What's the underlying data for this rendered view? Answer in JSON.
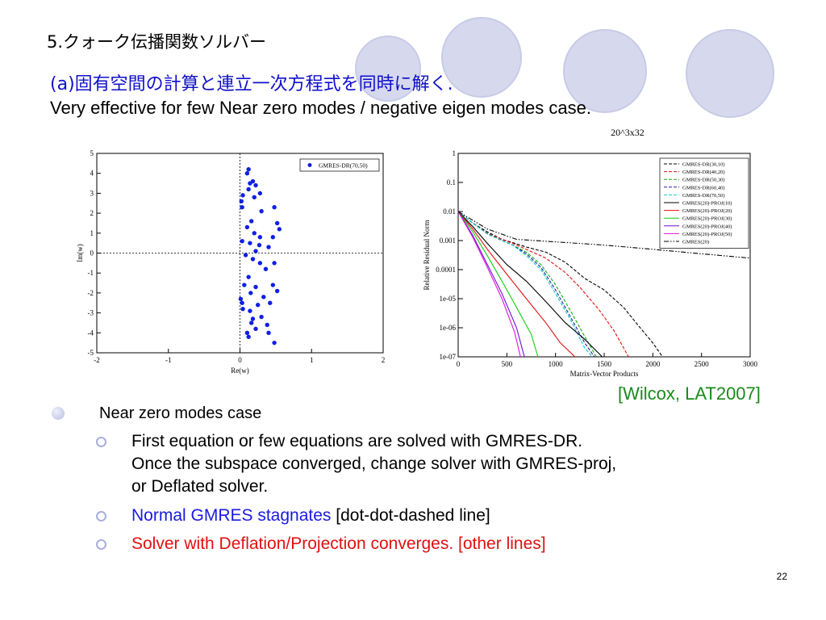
{
  "slide": {
    "title": "5.クォーク伝播関数ソルバー",
    "subtitle": "(a)固有空間の計算と連立一次方程式を同時に解く.",
    "subtitle2": "Very effective for few Near zero modes / negative eigen modes case.",
    "citation": "[Wilcox, LAT2007]",
    "page_number": "22",
    "bullet": "Near zero modes case",
    "sub_bullets": [
      {
        "line1": "First equation or few equations are solved with GMRES-DR.",
        "line2": "Once the subspace converged, change solver with GMRES-proj,",
        "line3": "or Deflated solver."
      },
      {
        "blue": "Normal GMRES stagnates",
        "black": " [dot-dot-dashed line]"
      },
      {
        "red": "Solver with Deflation/Projection converges. [other lines]"
      }
    ],
    "accent_colors": {
      "title_blue": "#1010c8",
      "citation_green": "#1a8a1a",
      "stagnate_blue": "#1a1ae0",
      "converge_red": "#e01010",
      "circle_fill": "#d6d9ee"
    }
  },
  "chart_data": [
    {
      "type": "scatter",
      "xlabel": "Re(w)",
      "ylabel": "Im(w)",
      "xlim": [
        -2,
        2
      ],
      "ylim": [
        -5,
        5
      ],
      "xticks": [
        "-2",
        "-1",
        "0",
        "1",
        "2"
      ],
      "yticks": [
        "-5",
        "-4",
        "-3",
        "-2",
        "-1",
        "0",
        "1",
        "2",
        "3",
        "4",
        "5"
      ],
      "legend": "GMRES-DR(70,50)",
      "legend_position": "top-right",
      "points": [
        [
          0.12,
          4.2
        ],
        [
          0.1,
          4.0
        ],
        [
          0.18,
          3.6
        ],
        [
          0.14,
          3.5
        ],
        [
          0.22,
          3.4
        ],
        [
          0.12,
          3.2
        ],
        [
          0.28,
          3.0
        ],
        [
          0.04,
          2.9
        ],
        [
          0.2,
          2.8
        ],
        [
          0.02,
          2.6
        ],
        [
          0.48,
          2.3
        ],
        [
          0.03,
          2.3
        ],
        [
          0.3,
          2.1
        ],
        [
          0.52,
          1.5
        ],
        [
          0.16,
          1.6
        ],
        [
          0.1,
          1.3
        ],
        [
          0.55,
          1.2
        ],
        [
          0.2,
          1.0
        ],
        [
          0.28,
          0.8
        ],
        [
          0.46,
          0.8
        ],
        [
          0.03,
          0.6
        ],
        [
          0.14,
          0.5
        ],
        [
          0.27,
          0.4
        ],
        [
          0.4,
          0.3
        ],
        [
          0.22,
          0.1
        ],
        [
          0.08,
          -0.1
        ],
        [
          0.18,
          -0.3
        ],
        [
          0.28,
          -0.5
        ],
        [
          0.48,
          -0.5
        ],
        [
          0.36,
          -0.8
        ],
        [
          0.12,
          -1.2
        ],
        [
          0.06,
          -1.6
        ],
        [
          0.22,
          -1.7
        ],
        [
          0.46,
          -1.6
        ],
        [
          0.52,
          -1.9
        ],
        [
          0.33,
          -2.2
        ],
        [
          0.15,
          -2.0
        ],
        [
          0.01,
          -2.3
        ],
        [
          0.25,
          -2.6
        ],
        [
          0.03,
          -2.5
        ],
        [
          0.42,
          -2.5
        ],
        [
          0.14,
          -2.9
        ],
        [
          0.04,
          -2.8
        ],
        [
          0.18,
          -3.3
        ],
        [
          0.16,
          -3.5
        ],
        [
          0.3,
          -3.2
        ],
        [
          0.38,
          -3.6
        ],
        [
          0.1,
          -4.0
        ],
        [
          0.22,
          -3.8
        ],
        [
          0.4,
          -4.0
        ],
        [
          0.12,
          -4.2
        ],
        [
          0.48,
          -4.5
        ]
      ]
    },
    {
      "type": "line",
      "title": "20^3x32",
      "xlabel": "Matrix-Vector Products",
      "ylabel": "Relative Residual Norm",
      "xlim": [
        0,
        3000
      ],
      "ylim": [
        1e-07,
        1
      ],
      "yscale": "log",
      "xticks": [
        "0",
        "500",
        "1000",
        "1500",
        "2000",
        "2500",
        "3000"
      ],
      "yticks": [
        "1e-07",
        "1e-06",
        "1e-05",
        "0.0001",
        "0.001",
        "0.01",
        "0.1",
        "1"
      ],
      "legend_position": "top-right",
      "series": [
        {
          "name": "GMRES-DR(30,10)",
          "color": "#000000",
          "dash": "dashed",
          "points": [
            [
              0,
              0.01
            ],
            [
              150,
              0.004
            ],
            [
              300,
              0.002
            ],
            [
              450,
              0.0011
            ],
            [
              560,
              0.00085
            ],
            [
              700,
              0.0006
            ],
            [
              900,
              0.0004
            ],
            [
              1100,
              0.00018
            ],
            [
              1300,
              5e-05
            ],
            [
              1500,
              2e-05
            ],
            [
              1700,
              5e-06
            ],
            [
              1850,
              1.2e-06
            ],
            [
              2000,
              3e-07
            ],
            [
              2100,
              1e-07
            ]
          ]
        },
        {
          "name": "GMRES-DR(40,20)",
          "color": "#e01010",
          "dash": "dashed",
          "points": [
            [
              0,
              0.01
            ],
            [
              150,
              0.004
            ],
            [
              300,
              0.0018
            ],
            [
              450,
              0.0011
            ],
            [
              560,
              0.0008
            ],
            [
              700,
              0.0005
            ],
            [
              900,
              0.00025
            ],
            [
              1100,
              8e-05
            ],
            [
              1250,
              2.5e-05
            ],
            [
              1450,
              4e-06
            ],
            [
              1600,
              8e-07
            ],
            [
              1750,
              1e-07
            ]
          ]
        },
        {
          "name": "GMRES-DR(50,30)",
          "color": "#10b010",
          "dash": "dashed",
          "points": [
            [
              0,
              0.01
            ],
            [
              150,
              0.004
            ],
            [
              300,
              0.0017
            ],
            [
              450,
              0.001
            ],
            [
              560,
              0.0007
            ],
            [
              700,
              0.0004
            ],
            [
              850,
              0.00015
            ],
            [
              1000,
              3e-05
            ],
            [
              1150,
              4e-06
            ],
            [
              1300,
              5e-07
            ],
            [
              1420,
              1e-07
            ]
          ]
        },
        {
          "name": "GMRES-DR(60,40)",
          "color": "#2020a0",
          "dash": "dashed",
          "points": [
            [
              0,
              0.01
            ],
            [
              150,
              0.004
            ],
            [
              300,
              0.0017
            ],
            [
              450,
              0.001
            ],
            [
              560,
              0.0007
            ],
            [
              700,
              0.00035
            ],
            [
              850,
              0.00012
            ],
            [
              1000,
              2e-05
            ],
            [
              1150,
              2.5e-06
            ],
            [
              1300,
              3e-07
            ],
            [
              1400,
              1e-07
            ]
          ]
        },
        {
          "name": "GMRES-DR(70,50)",
          "color": "#10c8c8",
          "dash": "dashed",
          "points": [
            [
              0,
              0.01
            ],
            [
              150,
              0.004
            ],
            [
              300,
              0.0017
            ],
            [
              450,
              0.001
            ],
            [
              560,
              0.0007
            ],
            [
              700,
              0.0003
            ],
            [
              850,
              0.0001
            ],
            [
              1000,
              1.5e-05
            ],
            [
              1150,
              2e-06
            ],
            [
              1300,
              2e-07
            ],
            [
              1380,
              1e-07
            ]
          ]
        },
        {
          "name": "GMRES(20)-PROJ(10)",
          "color": "#000000",
          "dash": "solid",
          "points": [
            [
              0,
              0.01
            ],
            [
              150,
              0.003
            ],
            [
              300,
              0.0008
            ],
            [
              500,
              0.00015
            ],
            [
              700,
              4e-05
            ],
            [
              900,
              8e-06
            ],
            [
              1100,
              1.5e-06
            ],
            [
              1300,
              4e-07
            ],
            [
              1480,
              1e-07
            ]
          ]
        },
        {
          "name": "GMRES(20)-PROJ(20)",
          "color": "#e01010",
          "dash": "solid",
          "points": [
            [
              0,
              0.01
            ],
            [
              150,
              0.0025
            ],
            [
              300,
              0.0005
            ],
            [
              500,
              7e-05
            ],
            [
              700,
              1e-05
            ],
            [
              900,
              1.5e-06
            ],
            [
              1050,
              3e-07
            ],
            [
              1200,
              1e-07
            ]
          ]
        },
        {
          "name": "GMRES(20)-PROJ(30)",
          "color": "#10d010",
          "dash": "solid",
          "points": [
            [
              0,
              0.01
            ],
            [
              150,
              0.002
            ],
            [
              300,
              0.0003
            ],
            [
              450,
              4e-05
            ],
            [
              600,
              5e-06
            ],
            [
              750,
              6e-07
            ],
            [
              820,
              1e-07
            ]
          ]
        },
        {
          "name": "GMRES(20)-PROJ(40)",
          "color": "#7010d0",
          "dash": "solid",
          "points": [
            [
              0,
              0.01
            ],
            [
              150,
              0.0015
            ],
            [
              300,
              0.00015
            ],
            [
              450,
              1.5e-05
            ],
            [
              600,
              1e-06
            ],
            [
              680,
              1e-07
            ]
          ]
        },
        {
          "name": "GMRES(20)-PROJ(50)",
          "color": "#e010e0",
          "dash": "solid",
          "points": [
            [
              0,
              0.01
            ],
            [
              150,
              0.0013
            ],
            [
              300,
              0.00012
            ],
            [
              450,
              1e-05
            ],
            [
              580,
              7e-07
            ],
            [
              640,
              1e-07
            ]
          ]
        },
        {
          "name": "GMRES(20)",
          "color": "#000000",
          "dash": "dashdot",
          "points": [
            [
              0,
              0.01
            ],
            [
              300,
              0.0025
            ],
            [
              600,
              0.0011
            ],
            [
              1000,
              0.0009
            ],
            [
              1500,
              0.0007
            ],
            [
              2000,
              0.0005
            ],
            [
              2500,
              0.00035
            ],
            [
              3000,
              0.00025
            ]
          ]
        }
      ]
    }
  ]
}
